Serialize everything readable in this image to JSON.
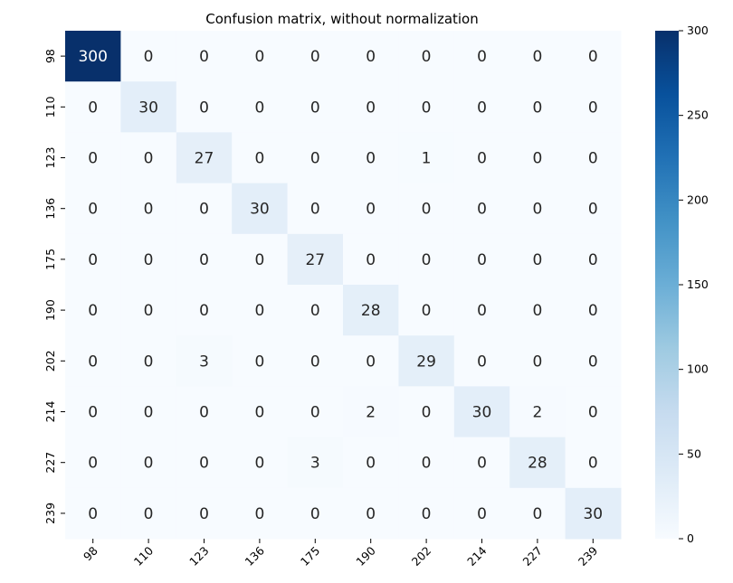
{
  "chart_data": {
    "type": "heatmap",
    "title": "Confusion matrix, without normalization",
    "xlabel": "",
    "ylabel": "",
    "x_categories": [
      "98",
      "110",
      "123",
      "136",
      "175",
      "190",
      "202",
      "214",
      "227",
      "239"
    ],
    "y_categories": [
      "98",
      "110",
      "123",
      "136",
      "175",
      "190",
      "202",
      "214",
      "227",
      "239"
    ],
    "matrix": [
      [
        300,
        0,
        0,
        0,
        0,
        0,
        0,
        0,
        0,
        0
      ],
      [
        0,
        30,
        0,
        0,
        0,
        0,
        0,
        0,
        0,
        0
      ],
      [
        0,
        0,
        27,
        0,
        0,
        0,
        1,
        0,
        0,
        0
      ],
      [
        0,
        0,
        0,
        30,
        0,
        0,
        0,
        0,
        0,
        0
      ],
      [
        0,
        0,
        0,
        0,
        27,
        0,
        0,
        0,
        0,
        0
      ],
      [
        0,
        0,
        0,
        0,
        0,
        28,
        0,
        0,
        0,
        0
      ],
      [
        0,
        0,
        3,
        0,
        0,
        0,
        29,
        0,
        0,
        0
      ],
      [
        0,
        0,
        0,
        0,
        0,
        2,
        0,
        30,
        2,
        0
      ],
      [
        0,
        0,
        0,
        0,
        3,
        0,
        0,
        0,
        28,
        0
      ],
      [
        0,
        0,
        0,
        0,
        0,
        0,
        0,
        0,
        0,
        30
      ]
    ],
    "colormap": "Blues",
    "color_low": "#f7fbff",
    "color_high": "#08306b",
    "value_range": [
      0,
      300
    ],
    "colorbar_ticks": [
      "0",
      "50",
      "100",
      "150",
      "200",
      "250",
      "300"
    ],
    "grid": false,
    "colorbar_position": "right"
  }
}
